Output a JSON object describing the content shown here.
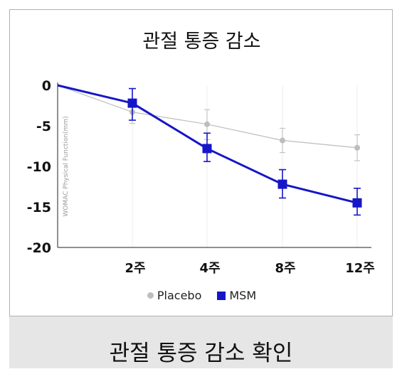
{
  "caption": "관절 통증 감소 확인",
  "chart_data": {
    "type": "line",
    "title": "관절 통증 감소",
    "ylabel": "WOMAC Physical Function(mm)",
    "xlabel": "",
    "categories": [
      "",
      "2주",
      "4주",
      "8주",
      "12주"
    ],
    "ylim": [
      -20,
      0
    ],
    "yticks": [
      0,
      -5,
      -10,
      -15,
      -20
    ],
    "legend_position": "bottom",
    "grid": "vertical",
    "series": [
      {
        "name": "Placebo",
        "color": "#bdbdbd",
        "marker": "circle",
        "values": [
          0,
          -3.3,
          -4.8,
          -6.8,
          -7.7
        ],
        "err_low": [
          0,
          -4.7,
          -6.7,
          -8.3,
          -9.3
        ],
        "err_high": [
          0,
          -2.3,
          -3.0,
          -5.3,
          -6.1
        ]
      },
      {
        "name": "MSM",
        "color": "#1616c8",
        "marker": "square",
        "values": [
          0,
          -2.2,
          -7.8,
          -12.2,
          -14.5
        ],
        "err_low": [
          0,
          -4.3,
          -9.4,
          -13.9,
          -16.0
        ],
        "err_high": [
          0,
          -0.4,
          -5.9,
          -10.4,
          -12.7
        ]
      }
    ]
  }
}
